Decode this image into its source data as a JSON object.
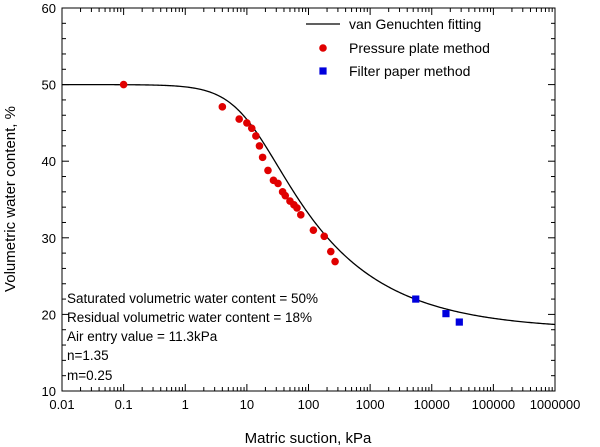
{
  "chart_data": {
    "type": "scatter",
    "xlabel": "Matric suction, kPa",
    "ylabel": "Volumetric water content, %",
    "xscale": "log",
    "xlim": [
      0.01,
      1000000
    ],
    "ylim": [
      10,
      60
    ],
    "x_ticks": [
      0.01,
      0.1,
      1,
      10,
      100,
      1000,
      10000,
      100000,
      1000000
    ],
    "x_tick_labels": [
      "0.01",
      "0.1",
      "1",
      "10",
      "100",
      "1000",
      "10000",
      "100000",
      "1000000"
    ],
    "y_ticks": [
      10,
      20,
      30,
      40,
      50,
      60
    ],
    "y_tick_labels": [
      "10",
      "20",
      "30",
      "40",
      "50",
      "60"
    ],
    "grid": false,
    "legend_position": "top-right",
    "series": [
      {
        "name": "van Genuchten fitting",
        "kind": "line",
        "color": "#000000",
        "model": {
          "theta_s": 50,
          "theta_r": 18,
          "alpha": 0.0885,
          "n": 1.35,
          "m": 0.25
        }
      },
      {
        "name": "Pressure plate method",
        "kind": "marker",
        "marker": "circle",
        "color": "#e00000",
        "points": [
          [
            0.1,
            50.0
          ],
          [
            4,
            47.1
          ],
          [
            7.5,
            45.5
          ],
          [
            10,
            45.0
          ],
          [
            12,
            44.3
          ],
          [
            14,
            43.3
          ],
          [
            16,
            42.0
          ],
          [
            18,
            40.5
          ],
          [
            22,
            38.8
          ],
          [
            27,
            37.5
          ],
          [
            32,
            37.1
          ],
          [
            38,
            36.0
          ],
          [
            42,
            35.5
          ],
          [
            50,
            34.8
          ],
          [
            58,
            34.3
          ],
          [
            65,
            33.9
          ],
          [
            75,
            33.0
          ],
          [
            120,
            31.0
          ],
          [
            180,
            30.2
          ],
          [
            230,
            28.2
          ],
          [
            270,
            26.9
          ]
        ]
      },
      {
        "name": "Filter paper method",
        "kind": "marker",
        "marker": "square",
        "color": "#0000dd",
        "points": [
          [
            5500,
            22.0
          ],
          [
            17000,
            20.1
          ],
          [
            28000,
            19.0
          ]
        ]
      }
    ],
    "annotations": [
      "Saturated volumetric water content = 50%",
      "Residual volumetric water content = 18%",
      "Air entry value = 11.3kPa",
      "n=1.35",
      "m=0.25"
    ]
  }
}
